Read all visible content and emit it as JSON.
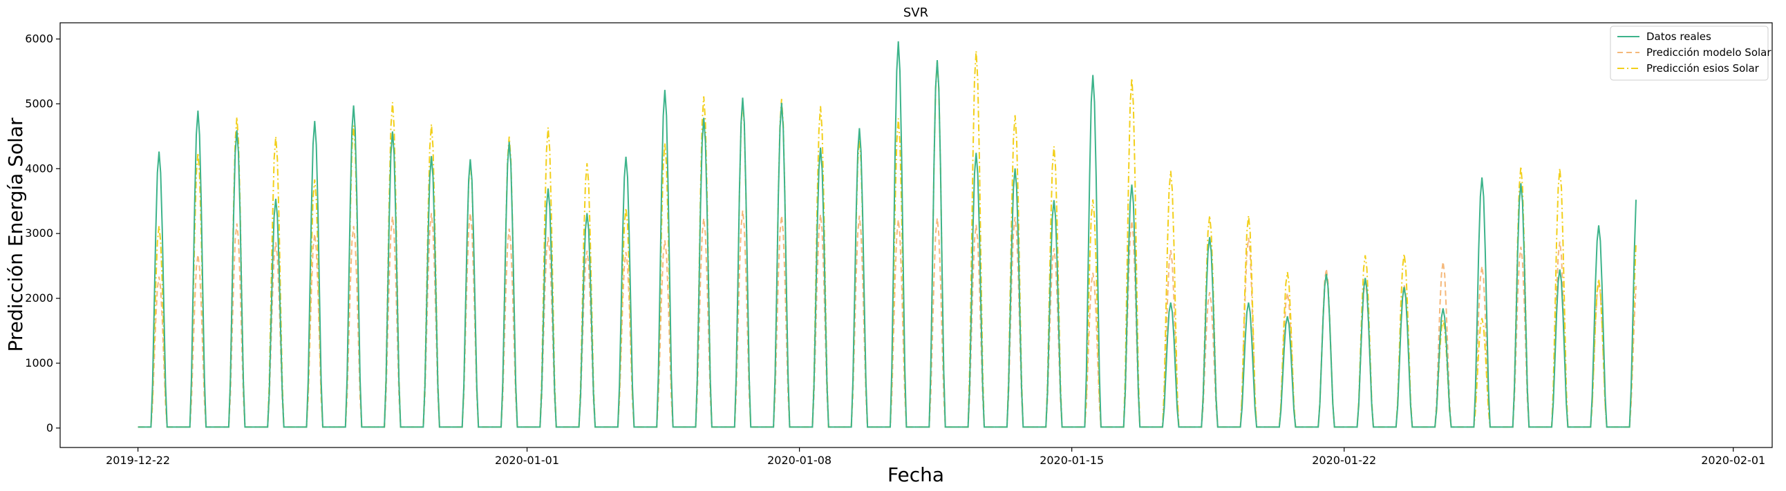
{
  "chart_data": {
    "type": "line",
    "title": "SVR",
    "xlabel": "Fecha",
    "ylabel": "Predicción Energía Solar",
    "x_start": "2019-12-22",
    "x_end": "2020-01-29",
    "xlim": [
      "2019-12-20",
      "2020-02-02"
    ],
    "ylim": [
      -300,
      6250
    ],
    "x_ticks": [
      "2019-12-22",
      "2020-01-01",
      "2020-01-08",
      "2020-01-15",
      "2020-01-22",
      "2020-02-01"
    ],
    "y_ticks": [
      0,
      1000,
      2000,
      3000,
      4000,
      5000,
      6000
    ],
    "grid": false,
    "legend_position": "top-right",
    "series": [
      {
        "name": "Datos reales",
        "color": "#3cb38a",
        "style": "solid",
        "daily_peaks": [
          4250,
          4880,
          4580,
          3520,
          4720,
          4960,
          4560,
          4180,
          4130,
          4400,
          3680,
          3300,
          4170,
          5200,
          4770,
          5080,
          5000,
          4310,
          4610,
          5950,
          5660,
          4230,
          3990,
          3500,
          5430,
          3740,
          1920,
          2930,
          1920,
          1710,
          2360,
          2300,
          2160,
          1830,
          3850,
          3760,
          2430,
          3110,
          3800,
          3480
        ]
      },
      {
        "name": "Predicción modelo Solar",
        "color": "#f5b87a",
        "style": "dashed",
        "daily_peaks": [
          2320,
          2660,
          3140,
          2850,
          2980,
          3100,
          3250,
          3300,
          3300,
          3060,
          2930,
          2720,
          2700,
          2880,
          3220,
          3340,
          3260,
          3280,
          3260,
          3200,
          3220,
          3120,
          3240,
          2760,
          2380,
          3180,
          2730,
          2080,
          2920,
          2070,
          2440,
          2240,
          2200,
          2550,
          2480,
          2780,
          2860,
          2240,
          2360,
          2720
        ]
      },
      {
        "name": "Predicción esios Solar",
        "color": "#f2cf1a",
        "style": "dashdot",
        "daily_peaks": [
          3100,
          4230,
          4780,
          4480,
          3820,
          4650,
          5010,
          4670,
          4080,
          4480,
          4620,
          4070,
          3380,
          4380,
          5100,
          5030,
          5060,
          4950,
          4450,
          4760,
          5650,
          5800,
          4810,
          4330,
          3510,
          5380,
          3950,
          3260,
          3260,
          2390,
          2360,
          2650,
          2670,
          1650,
          1680,
          4020,
          3990,
          2280,
          3080,
          3740
        ]
      }
    ]
  }
}
